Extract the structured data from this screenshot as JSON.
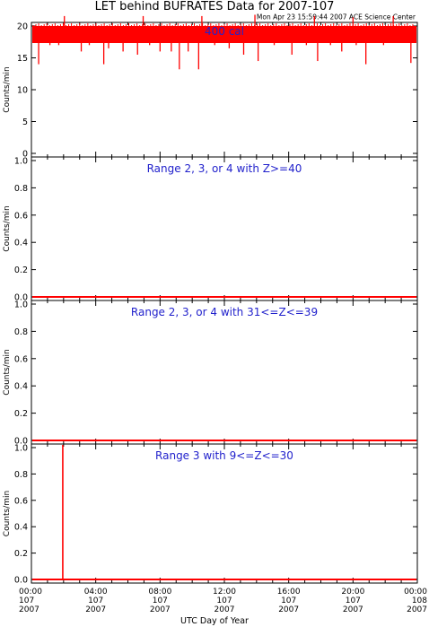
{
  "header": {
    "title": "LET behind BUFRATES Data for 2007-107",
    "timestamp": "Mon Apr 23 15:59:44 2007 ACE Science Center"
  },
  "colors": {
    "data": "#ff0000",
    "label": "#2222cc",
    "axis": "#000000"
  },
  "chart_data": [
    {
      "type": "bar",
      "label": "400 cal",
      "ylabel": "Counts/min",
      "ylim": [
        0,
        20
      ],
      "yticks": [
        0,
        5,
        10,
        15,
        20
      ],
      "x_unit": "hour of day 107",
      "baseline": 20,
      "dips": [
        [
          0.45,
          14
        ],
        [
          1.15,
          17
        ],
        [
          1.7,
          17
        ],
        [
          2.2,
          17.5
        ],
        [
          3.1,
          16
        ],
        [
          3.6,
          17
        ],
        [
          4.5,
          14
        ],
        [
          4.8,
          16.5
        ],
        [
          5.7,
          16
        ],
        [
          6.6,
          15.5
        ],
        [
          7.35,
          17
        ],
        [
          8.0,
          16
        ],
        [
          8.7,
          16
        ],
        [
          9.2,
          13.2
        ],
        [
          9.75,
          16
        ],
        [
          10.4,
          13.2
        ],
        [
          11.4,
          17
        ],
        [
          12.3,
          16.5
        ],
        [
          13.2,
          15.5
        ],
        [
          14.1,
          14.5
        ],
        [
          15.1,
          17
        ],
        [
          16.2,
          15.5
        ],
        [
          17.1,
          17
        ],
        [
          17.8,
          14.5
        ],
        [
          18.6,
          17
        ],
        [
          19.3,
          16
        ],
        [
          20.2,
          17
        ],
        [
          20.8,
          14
        ],
        [
          21.9,
          17
        ],
        [
          23.6,
          14.2
        ]
      ],
      "spikes": [
        [
          2.05,
          21
        ],
        [
          6.95,
          21
        ],
        [
          10.6,
          21
        ],
        [
          13.9,
          21.2
        ],
        [
          17.6,
          21
        ],
        [
          20.0,
          20.8
        ],
        [
          22.5,
          21
        ]
      ]
    },
    {
      "type": "bar",
      "label": "Range 2, 3, or 4 with Z>=40",
      "ylabel": "Counts/min",
      "ylim": [
        0,
        1.0
      ],
      "yticks": [
        0.0,
        0.2,
        0.4,
        0.6,
        0.8,
        1.0
      ],
      "x_unit": "hour of day 107",
      "baseline": 0,
      "spikes": []
    },
    {
      "type": "bar",
      "label": "Range 2, 3, or 4 with 31<=Z<=39",
      "ylabel": "Counts/min",
      "ylim": [
        0,
        1.0
      ],
      "yticks": [
        0.0,
        0.2,
        0.4,
        0.6,
        0.8,
        1.0
      ],
      "x_unit": "hour of day 107",
      "baseline": 0,
      "spikes": []
    },
    {
      "type": "bar",
      "label": "Range 3 with 9<=Z<=30",
      "ylabel": "Counts/min",
      "ylim": [
        0,
        1.0
      ],
      "yticks": [
        0.0,
        0.2,
        0.4,
        0.6,
        0.8,
        1.0
      ],
      "x_unit": "hour of day 107",
      "baseline": 0,
      "spikes": [
        [
          1.95,
          1.0
        ]
      ]
    }
  ],
  "xaxis": {
    "label": "UTC Day of Year",
    "range": [
      0,
      24
    ],
    "ticks": [
      {
        "pos": 0,
        "time": "00:00",
        "doy": "107",
        "year": "2007"
      },
      {
        "pos": 4,
        "time": "04:00",
        "doy": "107",
        "year": "2007"
      },
      {
        "pos": 8,
        "time": "08:00",
        "doy": "107",
        "year": "2007"
      },
      {
        "pos": 12,
        "time": "12:00",
        "doy": "107",
        "year": "2007"
      },
      {
        "pos": 16,
        "time": "16:00",
        "doy": "107",
        "year": "2007"
      },
      {
        "pos": 20,
        "time": "20:00",
        "doy": "107",
        "year": "2007"
      },
      {
        "pos": 24,
        "time": "00:00",
        "doy": "108",
        "year": "2007"
      }
    ]
  }
}
